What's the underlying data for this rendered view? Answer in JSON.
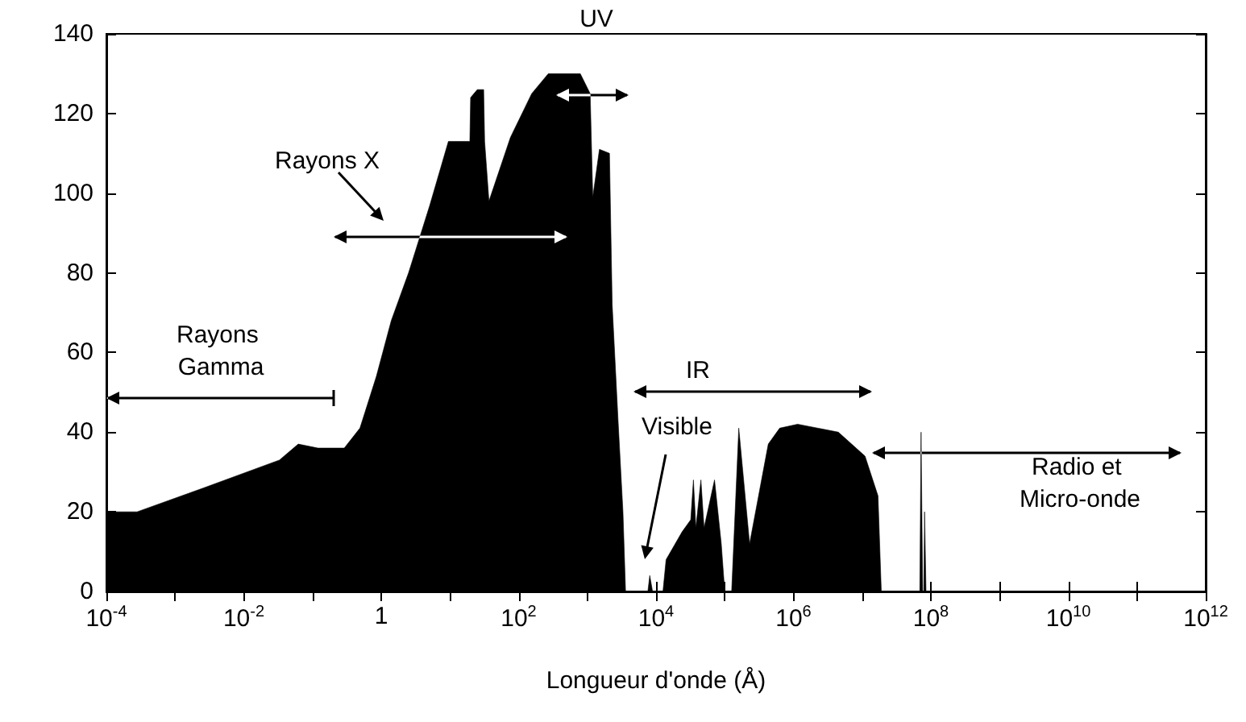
{
  "chart_data": {
    "type": "area",
    "xlabel": "Longueur d'onde (Å)",
    "log": "x",
    "color": "#000000",
    "x": [
      0.0001,
      0.00028,
      0.0026,
      0.033,
      0.062,
      0.12,
      0.29,
      0.49,
      0.85,
      1.4,
      2.5,
      5.1,
      9.5,
      19.5,
      20,
      25,
      31,
      32,
      37,
      76,
      155,
      270,
      790,
      1100,
      1200,
      1500,
      2100,
      2300,
      2800,
      3300,
      3600,
      7600,
      8100,
      8900,
      12600,
      14000,
      24000,
      32000,
      35000,
      38000,
      45000,
      50000,
      71000,
      89000,
      100000,
      126000,
      160000,
      230000,
      430000,
      630000,
      1150000,
      4500000,
      11000000,
      17000000,
      19000000,
      69000000,
      72000000,
      76000000,
      79000000,
      81000000,
      85000000,
      1000000000000
    ],
    "values": [
      20,
      20,
      26,
      33,
      37,
      36,
      36,
      41,
      54,
      68,
      80,
      97,
      113,
      113,
      124,
      126,
      126,
      113,
      98,
      114,
      125,
      130,
      130,
      125,
      99,
      111,
      110,
      72,
      43,
      20,
      0,
      0,
      4,
      0,
      0,
      8,
      15,
      18,
      28,
      16,
      28,
      16,
      28,
      12,
      0,
      0,
      41,
      12,
      37,
      41,
      42,
      40,
      34,
      24,
      0,
      0,
      40,
      0,
      0,
      20,
      0,
      0
    ],
    "xlim": [
      0.0001,
      1000000000000
    ],
    "xticks": [
      {
        "value": 0.0001,
        "label": "10$^{-4}$"
      },
      {
        "value": 0.001,
        "label": null
      },
      {
        "value": 0.01,
        "label": "10$^{-2}$"
      },
      {
        "value": 0.1,
        "label": null
      },
      1,
      {
        "value": 10,
        "label": null
      },
      {
        "value": 100,
        "label": "10$^{2}$"
      },
      {
        "value": 1000,
        "label": null
      },
      {
        "value": 10000,
        "label": "10$^{4}$"
      },
      {
        "value": 100000,
        "label": null
      },
      {
        "value": 1000000,
        "label": "10$^{6}$"
      },
      {
        "value": 10000000,
        "label": null
      },
      {
        "value": 100000000,
        "label": "10$^{8}$"
      },
      {
        "value": 1000000000,
        "label": null
      },
      {
        "value": 10000000000,
        "label": "10$^{10}$"
      },
      {
        "value": 100000000000,
        "label": null
      },
      {
        "value": 1000000000000,
        "label": "10$^{12}$"
      }
    ],
    "ylim": [
      0,
      140
    ],
    "yticks": [
      0,
      20,
      40,
      60,
      80,
      100,
      120,
      140
    ],
    "annotations": [
      "Rayons Gamma",
      "Rayons X",
      "UV",
      "IR",
      "Visible",
      "Radio et Micro-onde"
    ]
  }
}
